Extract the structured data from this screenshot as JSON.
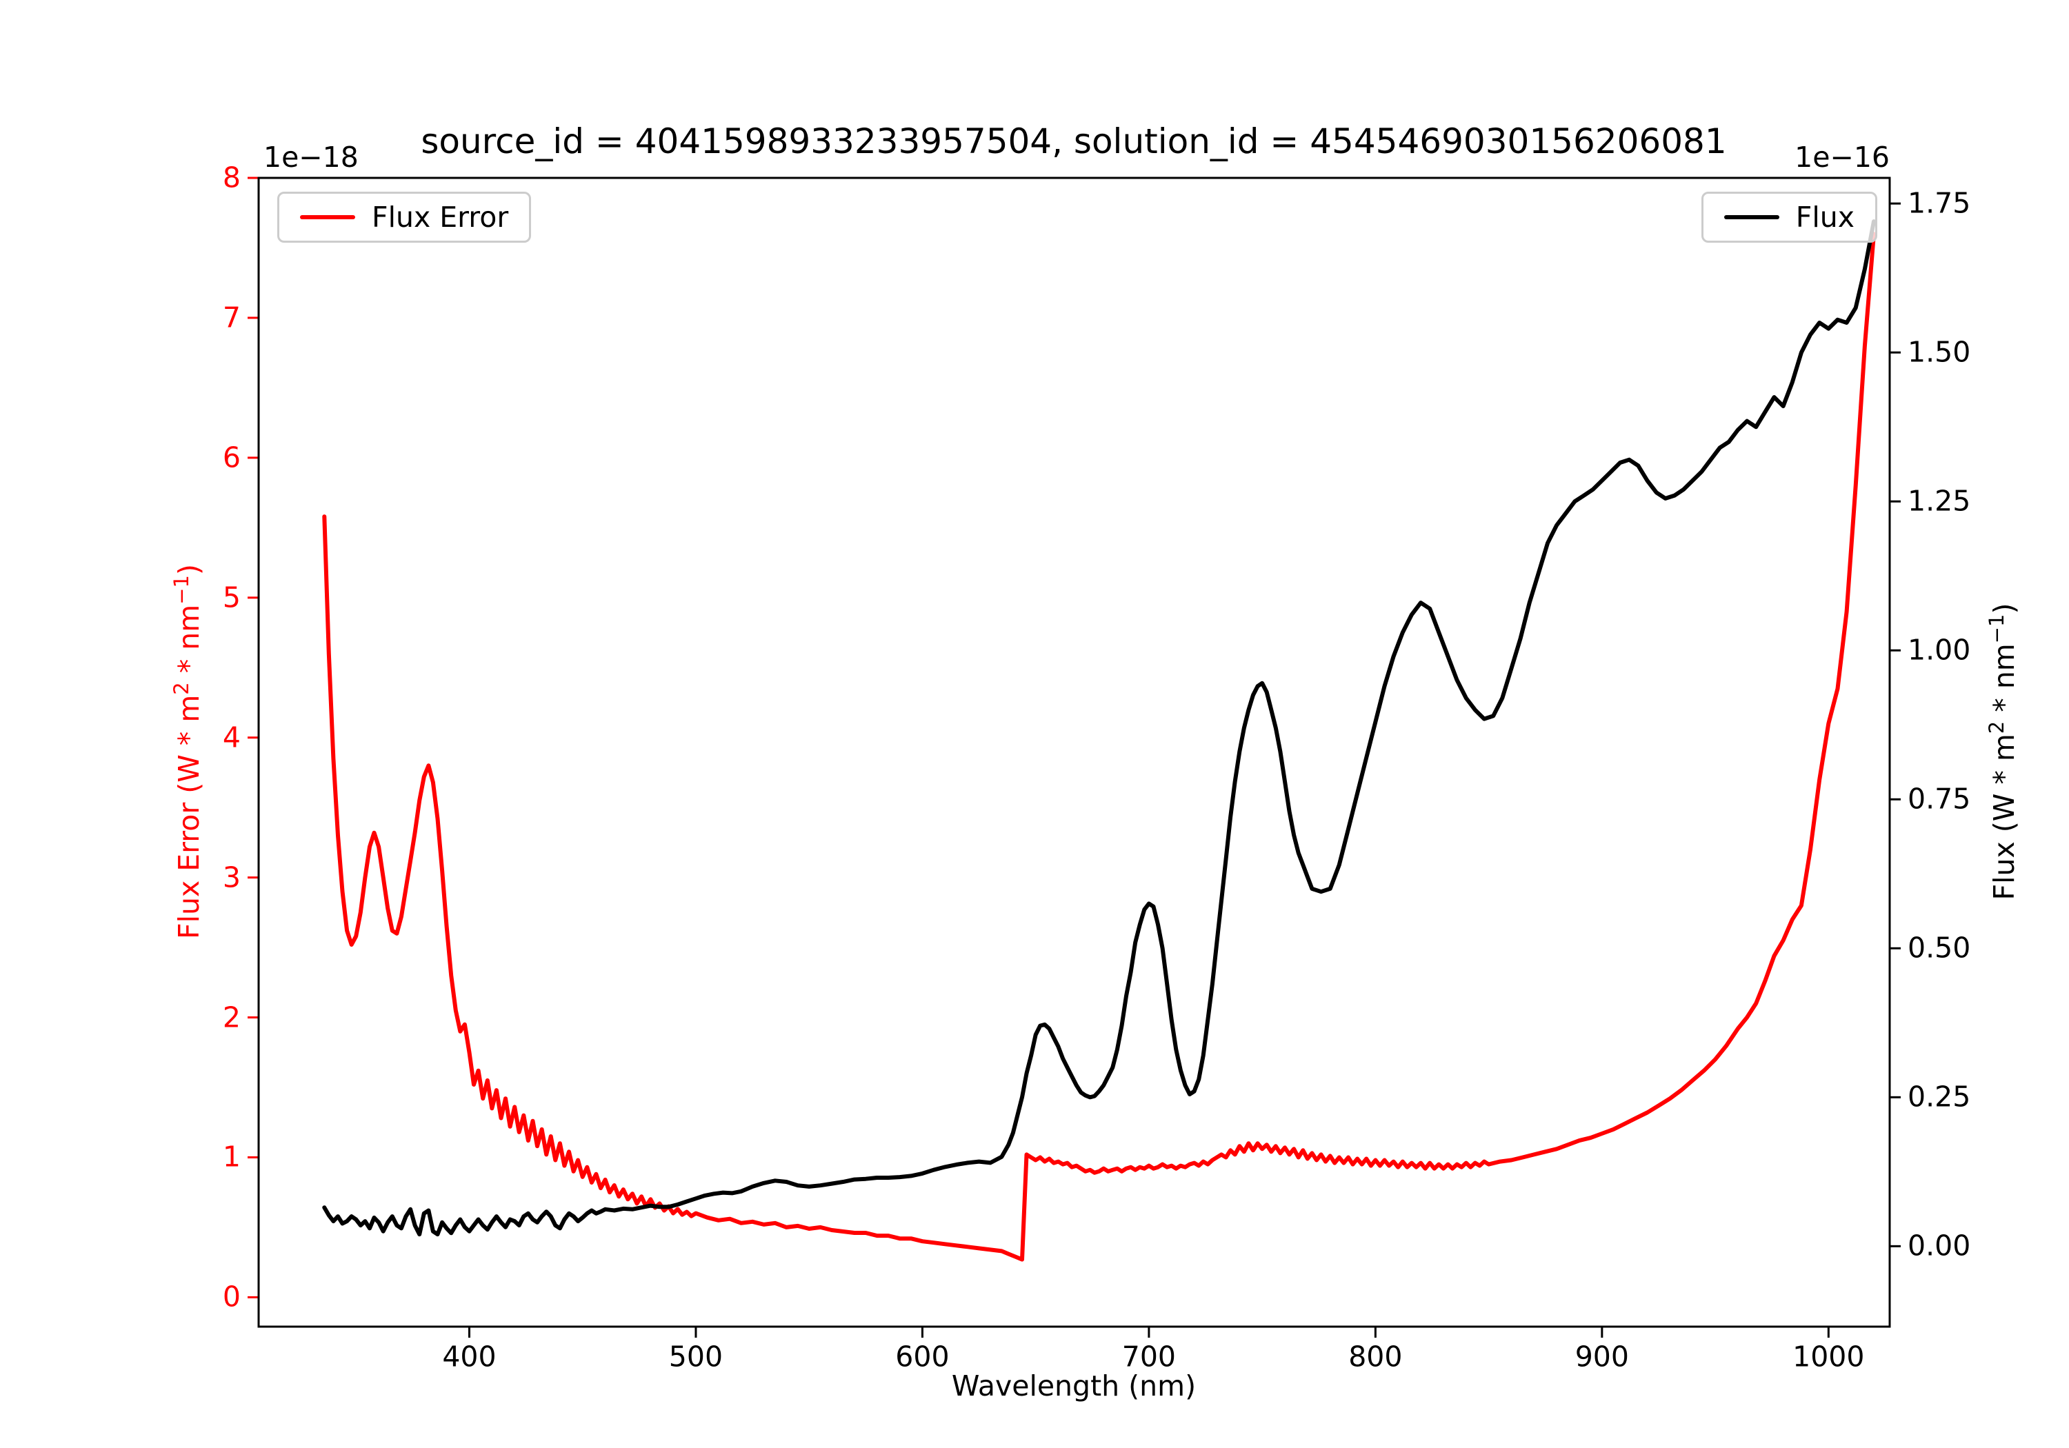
{
  "title": "source_id = 4041598933233957504, solution_id = 4545469030156206081",
  "legend_left": {
    "label": "Flux Error"
  },
  "legend_right": {
    "label": "Flux"
  },
  "chart_data": {
    "type": "line",
    "title": "source_id = 4041598933233957504, solution_id = 4545469030156206081",
    "xlabel": "Wavelength (nm)",
    "ylabel_left": "Flux Error (W * m^2 * nm^-1)",
    "ylabel_right": "Flux (W * m^2 * nm^-1)",
    "grid": false,
    "legend_positions": [
      "upper left",
      "upper right"
    ],
    "axes": {
      "x": {
        "min": 307,
        "max": 1027,
        "ticks": [
          400,
          500,
          600,
          700,
          800,
          900,
          1000
        ]
      },
      "y_left": {
        "min": -0.21,
        "max": 8.0,
        "ticks": [
          0,
          1,
          2,
          3,
          4,
          5,
          6,
          7,
          8
        ],
        "tick_labels": [
          "0",
          "1",
          "2",
          "3",
          "4",
          "5",
          "6",
          "7",
          "8"
        ],
        "offset_text": "1e−18",
        "color": "#ff0000",
        "label_parts": {
          "p1": "Flux Error (W * m",
          "s1": "2",
          "p2": " * nm",
          "s2": "−1",
          "p3": ")"
        }
      },
      "y_right": {
        "min": -0.135,
        "max": 1.793,
        "ticks": [
          0,
          0.25,
          0.5,
          0.75,
          1.0,
          1.25,
          1.5,
          1.75
        ],
        "tick_labels": [
          "0.00",
          "0.25",
          "0.50",
          "0.75",
          "1.00",
          "1.25",
          "1.50",
          "1.75"
        ],
        "offset_text": "1e−16",
        "color": "#000000",
        "label_parts": {
          "p1": "Flux (W * m",
          "s1": "2",
          "p2": " * nm",
          "s2": "−1",
          "p3": ")"
        }
      }
    },
    "series": [
      {
        "name": "Flux Error",
        "color": "#ff0000",
        "axis": "left",
        "unit_scale": "1e-18",
        "x_range": [
          336,
          1020
        ],
        "segments": [
          {
            "x_start": 336,
            "x_step": 2,
            "y": [
              5.58,
              4.6,
              3.85,
              3.3,
              2.9,
              2.62,
              2.52,
              2.58,
              2.75,
              3.0,
              3.22,
              3.32,
              3.22,
              3.0,
              2.78,
              2.62,
              2.6,
              2.72,
              2.92,
              3.12,
              3.32,
              3.55,
              3.72,
              3.8,
              3.68,
              3.42,
              3.05,
              2.65,
              2.3,
              2.05,
              1.9,
              1.95,
              1.75,
              1.52,
              1.62,
              1.42,
              1.55,
              1.35,
              1.48,
              1.28,
              1.42,
              1.22,
              1.36,
              1.18,
              1.3,
              1.12,
              1.26,
              1.08,
              1.2,
              1.02,
              1.15,
              0.98,
              1.1,
              0.94,
              1.04,
              0.9,
              0.98,
              0.86,
              0.93,
              0.82,
              0.88,
              0.78,
              0.84,
              0.75,
              0.8,
              0.72,
              0.77,
              0.7,
              0.74,
              0.67,
              0.72,
              0.65,
              0.7,
              0.64,
              0.67,
              0.62,
              0.65,
              0.6,
              0.63,
              0.59,
              0.61,
              0.58,
              0.6
            ]
          },
          {
            "x_start": 505,
            "x_step": 5,
            "y": [
              0.57,
              0.55,
              0.56,
              0.53,
              0.54,
              0.52,
              0.53,
              0.5,
              0.51,
              0.49,
              0.5,
              0.48,
              0.47,
              0.46,
              0.46,
              0.44,
              0.44,
              0.42,
              0.42,
              0.4,
              0.39,
              0.38,
              0.37,
              0.36,
              0.35,
              0.34,
              0.33
            ]
          },
          {
            "x_start": 638,
            "x_step": 3,
            "y": [
              0.31,
              0.29,
              0.27
            ]
          },
          {
            "x_start": 646,
            "x_step": 2,
            "y": [
              1.02,
              1.0,
              0.98,
              1.0,
              0.97,
              0.99,
              0.96,
              0.97,
              0.95,
              0.96,
              0.93,
              0.94,
              0.92,
              0.9,
              0.91,
              0.89,
              0.9,
              0.92,
              0.9,
              0.91,
              0.92,
              0.9,
              0.92,
              0.93,
              0.91,
              0.93,
              0.92,
              0.94,
              0.92,
              0.93,
              0.95,
              0.93,
              0.94,
              0.92,
              0.94,
              0.93,
              0.95,
              0.96,
              0.94,
              0.97,
              0.95,
              0.98,
              1.0,
              1.02,
              1.0,
              1.05,
              1.02,
              1.08,
              1.04,
              1.1,
              1.05,
              1.1,
              1.06,
              1.09,
              1.04,
              1.08,
              1.03,
              1.07,
              1.02,
              1.06,
              1.0,
              1.05,
              0.99,
              1.03,
              0.98,
              1.02,
              0.97,
              1.01,
              0.96,
              1.0,
              0.96,
              1.0,
              0.95,
              0.99,
              0.95,
              0.99,
              0.94,
              0.98,
              0.94,
              0.98,
              0.94,
              0.97,
              0.93,
              0.97,
              0.93,
              0.96,
              0.93,
              0.96,
              0.92,
              0.96,
              0.92,
              0.95,
              0.92,
              0.95,
              0.92,
              0.95,
              0.93,
              0.96,
              0.93,
              0.96,
              0.94,
              0.97,
              0.95
            ]
          },
          {
            "x_start": 855,
            "x_step": 5,
            "y": [
              0.97,
              0.98,
              1.0,
              1.02,
              1.04,
              1.06,
              1.09,
              1.12,
              1.14,
              1.17,
              1.2,
              1.24,
              1.28,
              1.32,
              1.37,
              1.42,
              1.48,
              1.55,
              1.62,
              1.7,
              1.8
            ]
          },
          {
            "x_start": 960,
            "x_step": 4,
            "y": [
              1.92,
              2.0,
              2.1,
              2.26,
              2.44,
              2.55,
              2.7,
              2.8,
              3.2,
              3.7,
              4.1,
              4.35,
              4.9,
              5.8,
              6.8,
              7.6
            ]
          }
        ]
      },
      {
        "name": "Flux",
        "color": "#000000",
        "axis": "right",
        "unit_scale": "1e-16",
        "x_range": [
          336,
          1020
        ],
        "segments": [
          {
            "x_start": 336,
            "x_step": 2,
            "y": [
              0.065,
              0.052,
              0.042,
              0.05,
              0.038,
              0.042,
              0.05,
              0.045,
              0.035,
              0.042,
              0.03,
              0.048,
              0.04,
              0.025,
              0.04,
              0.05,
              0.035,
              0.03,
              0.05,
              0.062,
              0.035,
              0.02,
              0.055,
              0.06,
              0.025,
              0.02,
              0.04,
              0.03,
              0.022,
              0.035,
              0.045,
              0.032,
              0.025,
              0.035,
              0.045,
              0.035,
              0.028,
              0.04,
              0.05,
              0.04,
              0.032,
              0.045,
              0.042,
              0.035,
              0.05,
              0.055,
              0.045,
              0.04,
              0.05,
              0.058,
              0.05,
              0.035,
              0.03,
              0.045,
              0.055,
              0.05,
              0.042,
              0.048,
              0.055,
              0.06,
              0.055,
              0.058,
              0.062
            ]
          },
          {
            "x_start": 464,
            "x_step": 4,
            "y": [
              0.06,
              0.063,
              0.062,
              0.065,
              0.068,
              0.066,
              0.066,
              0.07,
              0.075,
              0.08,
              0.085,
              0.088,
              0.09,
              0.089,
              0.092
            ]
          },
          {
            "x_start": 525,
            "x_step": 5,
            "y": [
              0.1,
              0.106,
              0.11,
              0.108,
              0.102,
              0.1,
              0.102,
              0.105,
              0.108,
              0.112,
              0.113,
              0.115,
              0.115,
              0.116,
              0.118,
              0.122,
              0.128,
              0.133,
              0.137,
              0.14,
              0.142,
              0.14,
              0.15
            ]
          },
          {
            "x_start": 638,
            "x_step": 2,
            "y": [
              0.17,
              0.19,
              0.22,
              0.25,
              0.29,
              0.32,
              0.355,
              0.37,
              0.372,
              0.365,
              0.35,
              0.335,
              0.315,
              0.3,
              0.285,
              0.27,
              0.258,
              0.253,
              0.25,
              0.252,
              0.26,
              0.27,
              0.285,
              0.3,
              0.33,
              0.37,
              0.42,
              0.46,
              0.51,
              0.54,
              0.565,
              0.575,
              0.57,
              0.54,
              0.5,
              0.44,
              0.38,
              0.33,
              0.295,
              0.27,
              0.255,
              0.26,
              0.28,
              0.32,
              0.38,
              0.44,
              0.51,
              0.58,
              0.65,
              0.72,
              0.78,
              0.83,
              0.87,
              0.9,
              0.925,
              0.94,
              0.945,
              0.93,
              0.9,
              0.87,
              0.83,
              0.78,
              0.73,
              0.69,
              0.66,
              0.64,
              0.62,
              0.6
            ]
          },
          {
            "x_start": 776,
            "x_step": 4,
            "y": [
              0.595,
              0.6,
              0.64,
              0.7,
              0.76,
              0.82,
              0.88,
              0.94,
              0.99,
              1.03,
              1.06,
              1.08,
              1.07,
              1.03,
              0.99,
              0.95,
              0.92,
              0.9,
              0.885,
              0.89,
              0.92,
              0.97,
              1.02,
              1.08,
              1.13,
              1.18,
              1.21,
              1.23,
              1.25,
              1.26,
              1.27,
              1.285,
              1.3,
              1.315,
              1.32,
              1.31,
              1.285,
              1.265,
              1.255,
              1.26,
              1.27,
              1.285,
              1.3,
              1.32,
              1.34,
              1.35,
              1.37,
              1.385,
              1.375,
              1.4,
              1.425,
              1.41,
              1.45,
              1.5,
              1.53,
              1.55,
              1.54,
              1.555,
              1.55,
              1.575,
              1.64,
              1.72
            ]
          }
        ]
      }
    ]
  }
}
